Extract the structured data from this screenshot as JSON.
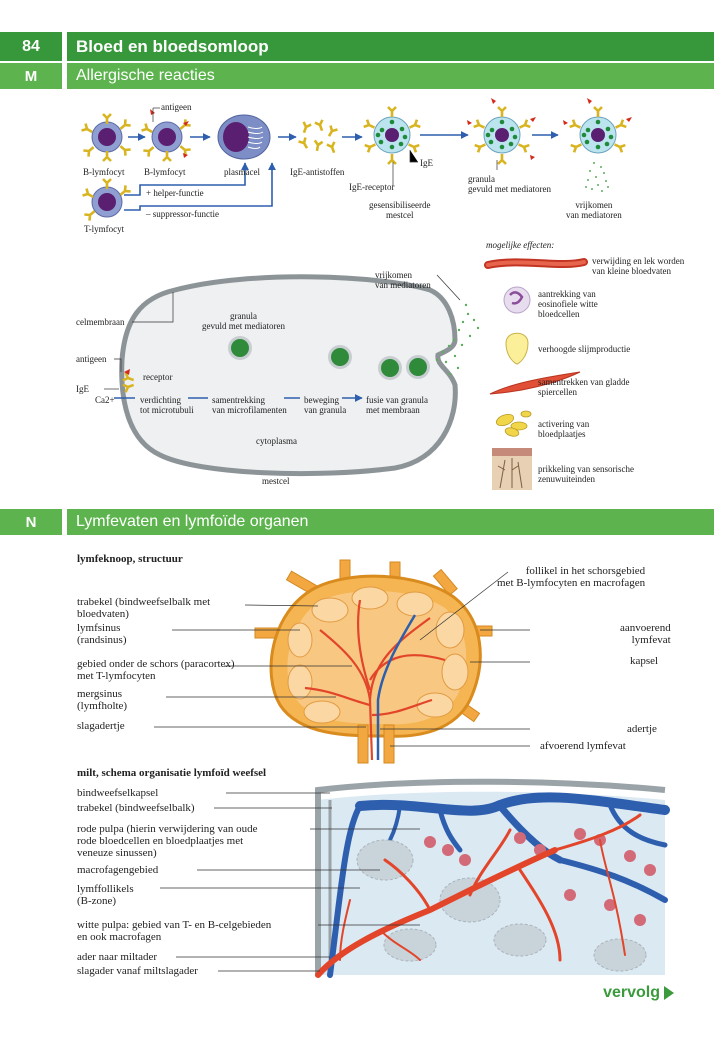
{
  "header": {
    "page_number": "84",
    "title": "Bloed en bloedsomloop"
  },
  "section_m": {
    "code": "M",
    "title": "Allergische reacties",
    "top_labels": {
      "b_lymfocyt_1": "B-lymfocyt",
      "b_lymfocyt_2": "B-lymfocyt",
      "antigeen": "antigeen",
      "plasmacel": "plasmacel",
      "ige_antistoffen": "IgE-antistoffen",
      "ige_receptor": "IgE-receptor",
      "ige": "IgE",
      "gesensibiliseerde_mestcel": "gesensibiliseerde\nmestcel",
      "granula": "granula\ngevuld met mediatoren",
      "vrijkomen": "vrijkomen\nvan mediatoren",
      "t_lymfocyt": "T-lymfocyt",
      "helper": "+ helper-functie",
      "suppressor": "– suppressor-functie"
    },
    "cell_labels": {
      "vrijkomen": "vrijkomen\nvan mediatoren",
      "celmembraan": "celmembraan",
      "granula": "granula\ngevuld met mediatoren",
      "antigeen": "antigeen",
      "receptor": "receptor",
      "ige": "IgE",
      "ca": "Ca2+",
      "step1": "verdichting\ntot microtubuli",
      "step2": "samentrekking\nvan microfilamenten",
      "step3": "beweging\nvan granula",
      "step4": "fusie van granula\nmet membraan",
      "cytoplasma": "cytoplasma",
      "mestcel": "mestcel"
    },
    "effects": {
      "heading": "mogelijke effecten:",
      "items": [
        "verwijding en lek worden\nvan kleine bloedvaten",
        "aantrekking van\neosinofiele witte\nbloedcellen",
        "verhoogde slijmproductie",
        "samentrekken van gladde\nspiercellen",
        "activering van\nbloedplaatjes",
        "prikkeling van sensorische\nzenuwuiteinden"
      ]
    }
  },
  "section_n": {
    "code": "N",
    "title": "Lymfevaten en lymfoïde organen",
    "node": {
      "subtitle": "lymfeknoop, structuur",
      "left_labels": [
        "trabekel (bindweefselbalk met\nbloedvaten)",
        "lymfsinus\n(randsinus)",
        "gebied onder de schors (paracortex)\nmet T-lymfocyten",
        "mergsinus\n(lymfholte)",
        "slagadertje"
      ],
      "right_labels": [
        "follikel in het schorsgebied\nmet B-lymfocyten en macrofagen",
        "aanvoerend\nlymfevat",
        "kapsel",
        "adertje",
        "afvoerend lymfevat"
      ]
    },
    "spleen": {
      "subtitle": "milt, schema organisatie lymfoïd weefsel",
      "labels": [
        "bindweefselkapsel",
        "trabekel (bindweefselbalk)",
        "rode pulpa (hierin verwijdering van oude\nrode bloedcellen en bloedplaatjes met\nveneuze sinussen)",
        "macrofagengebied",
        "lymffollikels\n(B-zone)",
        "witte pulpa: gebied van T- en B-celgebieden\nen ook macrofagen",
        "ader naar miltader",
        "slagader vanaf miltslagader"
      ]
    }
  },
  "footer": {
    "next_label": "vervolg"
  },
  "colors": {
    "green": "#3a9a3c",
    "orange": "#f2a740",
    "red": "#e2452a",
    "blue": "#2e5fae",
    "cell": "#7d8fc6"
  }
}
